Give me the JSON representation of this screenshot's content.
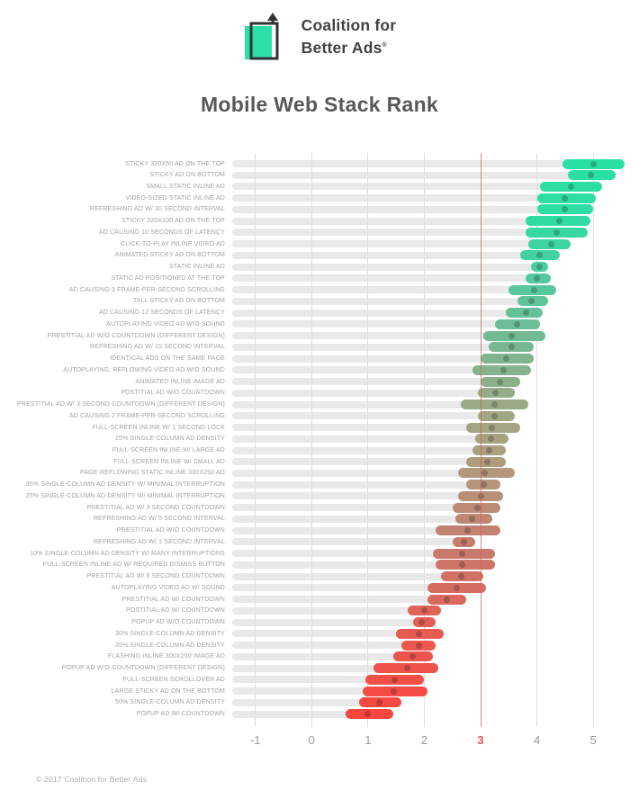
{
  "header": {
    "logo_line1": "Coalition for",
    "logo_line2": "Better Ads",
    "registered_mark": "®",
    "logo_teal": "#2be0a8",
    "logo_outline": "#2f3336"
  },
  "title": "Mobile Web Stack Rank",
  "footer": {
    "copyright": "© 2017 Coalition for Better Ads"
  },
  "chart_data": {
    "type": "bar",
    "subtype": "horizontal_range_bars_with_mean_dot",
    "title": "Mobile Web Stack Rank",
    "xlabel": "",
    "ylabel": "",
    "x_ticks": [
      -1,
      0,
      1,
      2,
      3,
      4,
      5
    ],
    "highlight_tick": 3,
    "xlim": [
      -1.41,
      5.65
    ],
    "grid": "vertical",
    "legend": "none",
    "colors": {
      "track": "#e9e9e9",
      "gridline": "#dfdfdf",
      "highlight_line": "rgba(214,92,92,0.75)",
      "tick_label": "#9b9b9b",
      "highlight_tick_label": "#e2574f",
      "gradient_stops": [
        {
          "at": 0.0,
          "c": "#2ADFA5"
        },
        {
          "at": 0.1,
          "c": "#2EDCA3"
        },
        {
          "at": 0.22,
          "c": "#55C99D"
        },
        {
          "at": 0.34,
          "c": "#7BB691"
        },
        {
          "at": 0.46,
          "c": "#9FA883"
        },
        {
          "at": 0.56,
          "c": "#B3997C"
        },
        {
          "at": 0.66,
          "c": "#C08372"
        },
        {
          "at": 0.76,
          "c": "#D36E63"
        },
        {
          "at": 0.86,
          "c": "#E85A52"
        },
        {
          "at": 1.0,
          "c": "#F9463F"
        }
      ]
    },
    "rows": [
      {
        "label": "STICKY 320X50 AD ON THE TOP",
        "min": 4.45,
        "mean": 5.0,
        "max": 5.55
      },
      {
        "label": "STICKY AD ON BOTTOM",
        "min": 4.55,
        "mean": 4.95,
        "max": 5.4
      },
      {
        "label": "SMALL STATIC INLINE AD",
        "min": 4.05,
        "mean": 4.6,
        "max": 5.15
      },
      {
        "label": "VIDEO-SIZED STATIC INLINE AD",
        "min": 4.0,
        "mean": 4.5,
        "max": 5.05
      },
      {
        "label": "REFRESHING AD W/ 30 SECOND INTERVAL",
        "min": 4.0,
        "mean": 4.5,
        "max": 5.0
      },
      {
        "label": "STICKY 320X100 AD ON THE TOP",
        "min": 3.8,
        "mean": 4.4,
        "max": 4.95
      },
      {
        "label": "AD CAUSING 10 SECONDS OF LATENCY",
        "min": 3.8,
        "mean": 4.35,
        "max": 4.9
      },
      {
        "label": "CLICK-TO-PLAY INLINE VIDEO AD",
        "min": 3.85,
        "mean": 4.25,
        "max": 4.6
      },
      {
        "label": "ANIMATED STICKY AD ON BOTTOM",
        "min": 3.7,
        "mean": 4.05,
        "max": 4.4
      },
      {
        "label": "STATIC INLINE AD",
        "min": 3.9,
        "mean": 4.05,
        "max": 4.2
      },
      {
        "label": "STATIC AD POSITIONED AT THE TOP",
        "min": 3.8,
        "mean": 4.0,
        "max": 4.25
      },
      {
        "label": "AD CAUSING 3 FRAME-PER-SECOND SCROLLING",
        "min": 3.5,
        "mean": 3.95,
        "max": 4.35
      },
      {
        "label": "TALL STICKY AD ON BOTTOM",
        "min": 3.65,
        "mean": 3.9,
        "max": 4.2
      },
      {
        "label": "AD CAUSING 12 SECONDS OF LATENCY",
        "min": 3.45,
        "mean": 3.8,
        "max": 4.1
      },
      {
        "label": "AUTOPLAYING VIDEO AD W/O SOUND",
        "min": 3.25,
        "mean": 3.65,
        "max": 4.05
      },
      {
        "label": "PRESTITIAL AD W/O COUNTDOWN (DIFFERENT DESIGN)",
        "min": 3.05,
        "mean": 3.55,
        "max": 4.15
      },
      {
        "label": "REFRESHING AD W/ 15 SECOND INTERVAL",
        "min": 3.15,
        "mean": 3.55,
        "max": 3.95
      },
      {
        "label": "IDENTICAL ADS ON THE SAME PAGE",
        "min": 3.0,
        "mean": 3.45,
        "max": 3.95
      },
      {
        "label": "AUTOPLAYING, REFLOWING VIDEO AD W/O SOUND",
        "min": 2.85,
        "mean": 3.4,
        "max": 3.9
      },
      {
        "label": "ANIMATED INLINE IMAGE AD",
        "min": 3.0,
        "mean": 3.35,
        "max": 3.7
      },
      {
        "label": "POSTITIAL AD W/O COUNTDOWN",
        "min": 2.95,
        "mean": 3.27,
        "max": 3.6
      },
      {
        "label": "PRESTITIAL AD W/ 3 SECOND COUNTDOWN (DIFFERENT DESIGN)",
        "min": 2.65,
        "mean": 3.25,
        "max": 3.85
      },
      {
        "label": "AD CAUSING 2 FRAME-PER-SECOND SCROLLING",
        "min": 2.95,
        "mean": 3.24,
        "max": 3.6
      },
      {
        "label": "FULL-SCREEN INLINE W/ 1 SECOND LOCK",
        "min": 2.75,
        "mean": 3.2,
        "max": 3.7
      },
      {
        "label": "25% SINGLE-COLUMN AD DENSITY",
        "min": 2.9,
        "mean": 3.19,
        "max": 3.5
      },
      {
        "label": "FULL-SCREEN INLINE W/ LARGE AD",
        "min": 2.85,
        "mean": 3.15,
        "max": 3.45
      },
      {
        "label": "FULL-SCREEN INLINE W/ SMALL AD",
        "min": 2.75,
        "mean": 3.12,
        "max": 3.45
      },
      {
        "label": "PAGE-REFLOWING STATIC INLINE 300X250 AD",
        "min": 2.6,
        "mean": 3.07,
        "max": 3.6
      },
      {
        "label": "35% SINGLE-COLUMN AD DENSITY W/ MINIMAL INTERRUPTION",
        "min": 2.75,
        "mean": 3.05,
        "max": 3.35
      },
      {
        "label": "25% SINGLE-COLUMN AD DENSITY W/ MINIMAL INTERRUPTION",
        "min": 2.6,
        "mean": 3.0,
        "max": 3.4
      },
      {
        "label": "PRESTITIAL AD W/ 3 SECOND COUNTDOWN",
        "min": 2.5,
        "mean": 2.95,
        "max": 3.35
      },
      {
        "label": "REFRESHING AD W/ 5 SECOND INTERVAL",
        "min": 2.55,
        "mean": 2.85,
        "max": 3.2
      },
      {
        "label": "PRESTITIAL AD W/O COUNTDOWN",
        "min": 2.2,
        "mean": 2.77,
        "max": 3.35
      },
      {
        "label": "REFRESHING AD W/ 1 SECOND INTERVAL",
        "min": 2.5,
        "mean": 2.7,
        "max": 2.9
      },
      {
        "label": "10% SINGLE-COLUMN AD DENSITY W/ MANY INTERRUPTIONS",
        "min": 2.15,
        "mean": 2.68,
        "max": 3.25
      },
      {
        "label": "FULL-SCREEN INLINE AD W/ REQUIRED DISMISS BUTTON",
        "min": 2.2,
        "mean": 2.67,
        "max": 3.25
      },
      {
        "label": "PRESTITIAL AD W/ 6 SECOND COUNTDOWN",
        "min": 2.3,
        "mean": 2.65,
        "max": 3.05
      },
      {
        "label": "AUTOPLAYING VIDEO AD W/ SOUND",
        "min": 2.05,
        "mean": 2.58,
        "max": 3.1
      },
      {
        "label": "PRESTITIAL AD W/ COUNTDOWN",
        "min": 2.05,
        "mean": 2.4,
        "max": 2.75
      },
      {
        "label": "POSTITIAL AD W/ COUNTDOWN",
        "min": 1.7,
        "mean": 2.0,
        "max": 2.3
      },
      {
        "label": "POPUP AD W/O COUNTDOWN",
        "min": 1.8,
        "mean": 1.96,
        "max": 2.2
      },
      {
        "label": "30% SINGLE-COLUMN AD DENSITY",
        "min": 1.5,
        "mean": 1.91,
        "max": 2.35
      },
      {
        "label": "35% SINGLE-COLUMN AD DENSITY",
        "min": 1.6,
        "mean": 1.9,
        "max": 2.2
      },
      {
        "label": "FLASHING INLINE 300X250 IMAGE AD",
        "min": 1.45,
        "mean": 1.8,
        "max": 2.15
      },
      {
        "label": "POPUP AD W/O COUNTDOWN (DIFFERENT DESIGN)",
        "min": 1.1,
        "mean": 1.7,
        "max": 2.25
      },
      {
        "label": "FULL-SCREEN SCROLLOVER AD",
        "min": 0.95,
        "mean": 1.47,
        "max": 2.0
      },
      {
        "label": "LARGE STICKY AD ON THE BOTTOM",
        "min": 0.9,
        "mean": 1.46,
        "max": 2.05
      },
      {
        "label": "50% SINGLE-COLUMN AD DENSITY",
        "min": 0.85,
        "mean": 1.2,
        "max": 1.6
      },
      {
        "label": "POPUP AD W/ COUNTDOWN",
        "min": 0.6,
        "mean": 1.0,
        "max": 1.45
      }
    ]
  }
}
